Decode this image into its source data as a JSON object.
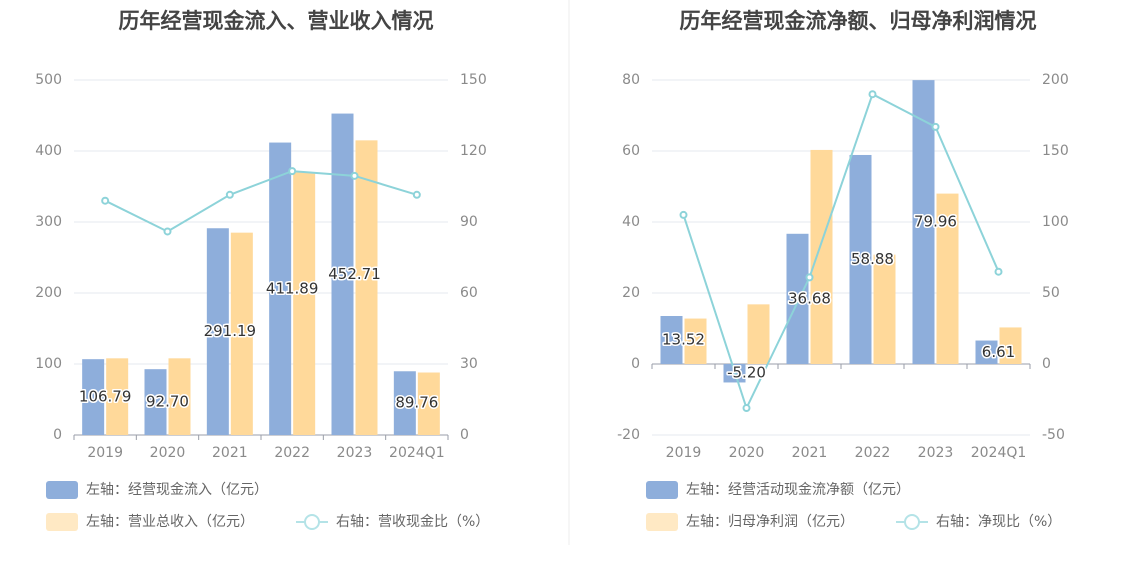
{
  "chart_data": [
    {
      "type": "bar",
      "title": "历年经营现金流入、营业收入情况",
      "categories": [
        "2019",
        "2020",
        "2021",
        "2022",
        "2023",
        "2024Q1"
      ],
      "y_left": {
        "ticks": [
          "0",
          "100",
          "200",
          "300",
          "400",
          "500"
        ],
        "lim": [
          0,
          500
        ]
      },
      "y_right": {
        "ticks": [
          "0",
          "30",
          "60",
          "90",
          "120",
          "150"
        ],
        "lim": [
          0,
          150
        ]
      },
      "grid": true,
      "legend_position": "bottom-left",
      "series": [
        {
          "name": "左轴：经营现金流入（亿元）",
          "kind": "bar",
          "axis": "left",
          "color": "#8eaedb",
          "values": [
            106.79,
            92.7,
            291.19,
            411.89,
            452.71,
            89.76
          ],
          "labels": [
            "106.79",
            "92.70",
            "291.19",
            "411.89",
            "452.71",
            "89.76"
          ]
        },
        {
          "name": "左轴：营业总收入（亿元）",
          "kind": "bar",
          "axis": "left",
          "color": "#ffd99a",
          "values": [
            108,
            108,
            285,
            370,
            415,
            88
          ]
        },
        {
          "name": "右轴：营收现金比（%）",
          "kind": "line",
          "axis": "right",
          "color": "#8dd3d9",
          "values": [
            99,
            86,
            101.5,
            111.5,
            109.5,
            101.5
          ]
        }
      ]
    },
    {
      "type": "bar",
      "title": "历年经营现金流净额、归母净利润情况",
      "categories": [
        "2019",
        "2020",
        "2021",
        "2022",
        "2023",
        "2024Q1"
      ],
      "y_left": {
        "ticks": [
          "-20",
          "0",
          "20",
          "40",
          "60",
          "80"
        ],
        "lim": [
          -20,
          80
        ]
      },
      "y_right": {
        "ticks": [
          "-50",
          "0",
          "50",
          "100",
          "150",
          "200"
        ],
        "lim": [
          -50,
          200
        ]
      },
      "grid": true,
      "legend_position": "bottom-left",
      "series": [
        {
          "name": "左轴：经营活动现金流净额（亿元）",
          "kind": "bar",
          "axis": "left",
          "color": "#8eaedb",
          "values": [
            13.52,
            -5.2,
            36.68,
            58.88,
            79.96,
            6.61
          ],
          "labels": [
            "13.52",
            "-5.20",
            "36.68",
            "58.88",
            "79.96",
            "6.61"
          ]
        },
        {
          "name": "左轴：归母净利润（亿元）",
          "kind": "bar",
          "axis": "left",
          "color": "#ffd99a",
          "values": [
            12.8,
            16.8,
            60.3,
            30.8,
            48,
            10.3
          ]
        },
        {
          "name": "右轴：净现比（%）",
          "kind": "line",
          "axis": "right",
          "color": "#8dd3d9",
          "values": [
            105,
            -31,
            61,
            190,
            167,
            65
          ]
        }
      ]
    }
  ]
}
